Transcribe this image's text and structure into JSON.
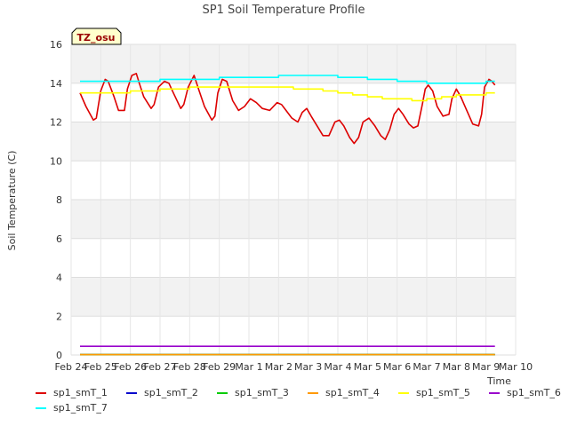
{
  "chart_data": {
    "type": "line",
    "title": "SP1 Soil Temperature Profile",
    "xlabel": "Time",
    "ylabel": "Soil Temperature (C)",
    "annotation": "TZ_osu",
    "xlim": [
      0,
      15
    ],
    "ylim": [
      0,
      16
    ],
    "x_ticks": [
      "Feb 24",
      "Feb 25",
      "Feb 26",
      "Feb 27",
      "Feb 28",
      "Feb 29",
      "Mar 1",
      "Mar 2",
      "Mar 3",
      "Mar 4",
      "Mar 5",
      "Mar 6",
      "Mar 7",
      "Mar 8",
      "Mar 9",
      "Mar 10"
    ],
    "y_ticks": [
      0,
      2,
      4,
      6,
      8,
      10,
      12,
      14,
      16
    ],
    "grid": true,
    "legend_position": "bottom",
    "series": [
      {
        "name": "sp1_smT_1",
        "color": "#dd0000",
        "x": [
          0.3,
          0.5,
          0.75,
          0.85,
          1.0,
          1.15,
          1.25,
          1.45,
          1.6,
          1.8,
          1.9,
          2.05,
          2.2,
          2.3,
          2.45,
          2.7,
          2.8,
          2.95,
          3.15,
          3.3,
          3.45,
          3.7,
          3.8,
          3.95,
          4.15,
          4.3,
          4.5,
          4.75,
          4.85,
          4.95,
          5.1,
          5.25,
          5.45,
          5.65,
          5.85,
          6.05,
          6.25,
          6.45,
          6.7,
          6.95,
          7.1,
          7.25,
          7.45,
          7.65,
          7.8,
          7.95,
          8.1,
          8.3,
          8.5,
          8.7,
          8.9,
          9.05,
          9.2,
          9.4,
          9.55,
          9.7,
          9.85,
          10.05,
          10.25,
          10.45,
          10.6,
          10.75,
          10.9,
          11.05,
          11.2,
          11.4,
          11.55,
          11.7,
          11.85,
          11.95,
          12.05,
          12.2,
          12.35,
          12.55,
          12.75,
          12.85,
          13.0,
          13.15,
          13.35,
          13.55,
          13.75,
          13.85,
          13.95,
          14.1,
          14.2,
          14.3
        ],
        "y": [
          13.5,
          12.8,
          12.1,
          12.2,
          13.6,
          14.2,
          14.1,
          13.3,
          12.6,
          12.6,
          13.7,
          14.4,
          14.5,
          14.0,
          13.3,
          12.7,
          12.9,
          13.8,
          14.1,
          14.0,
          13.5,
          12.7,
          12.9,
          13.8,
          14.4,
          13.7,
          12.8,
          12.1,
          12.3,
          13.5,
          14.2,
          14.1,
          13.1,
          12.6,
          12.8,
          13.2,
          13.0,
          12.7,
          12.6,
          13.0,
          12.9,
          12.6,
          12.2,
          12.0,
          12.5,
          12.7,
          12.3,
          11.8,
          11.3,
          11.3,
          12.0,
          12.1,
          11.8,
          11.2,
          10.9,
          11.2,
          12.0,
          12.2,
          11.8,
          11.3,
          11.1,
          11.6,
          12.4,
          12.7,
          12.4,
          11.9,
          11.7,
          11.8,
          12.9,
          13.7,
          13.9,
          13.6,
          12.8,
          12.3,
          12.4,
          13.2,
          13.7,
          13.3,
          12.6,
          11.9,
          11.8,
          12.4,
          13.8,
          14.2,
          14.1,
          13.9
        ]
      },
      {
        "name": "sp1_smT_2",
        "color": "#0000cc",
        "x": [
          0.3,
          14.3
        ],
        "y": [
          0.02,
          0.02
        ]
      },
      {
        "name": "sp1_smT_3",
        "color": "#00cc00",
        "x": [
          0.3,
          14.3
        ],
        "y": [
          0.02,
          0.02
        ]
      },
      {
        "name": "sp1_smT_4",
        "color": "#ff9900",
        "x": [
          0.3,
          14.3
        ],
        "y": [
          0.02,
          0.02
        ]
      },
      {
        "name": "sp1_smT_5",
        "color": "#ffff00",
        "x": [
          0.3,
          1.0,
          2.0,
          3.0,
          4.0,
          5.0,
          6.0,
          7.0,
          7.5,
          8.5,
          9.0,
          9.5,
          10.0,
          10.5,
          11.0,
          11.5,
          12.0,
          12.5,
          13.0,
          13.5,
          14.0,
          14.3
        ],
        "y": [
          13.5,
          13.5,
          13.6,
          13.7,
          13.8,
          13.8,
          13.8,
          13.8,
          13.7,
          13.6,
          13.5,
          13.4,
          13.3,
          13.2,
          13.2,
          13.1,
          13.2,
          13.3,
          13.4,
          13.4,
          13.5,
          13.5
        ],
        "step": true
      },
      {
        "name": "sp1_smT_6",
        "color": "#9900cc",
        "x": [
          0.3,
          14.3
        ],
        "y": [
          0.45,
          0.45
        ]
      },
      {
        "name": "sp1_smT_7",
        "color": "#00ffff",
        "x": [
          0.3,
          2.0,
          3.0,
          4.0,
          5.0,
          5.8,
          7.0,
          8.0,
          8.5,
          9.0,
          10.0,
          11.0,
          12.0,
          13.0,
          14.0,
          14.3
        ],
        "y": [
          14.1,
          14.1,
          14.2,
          14.2,
          14.3,
          14.3,
          14.4,
          14.4,
          14.4,
          14.3,
          14.2,
          14.1,
          14.0,
          14.0,
          14.1,
          14.1
        ],
        "step": true
      }
    ]
  }
}
